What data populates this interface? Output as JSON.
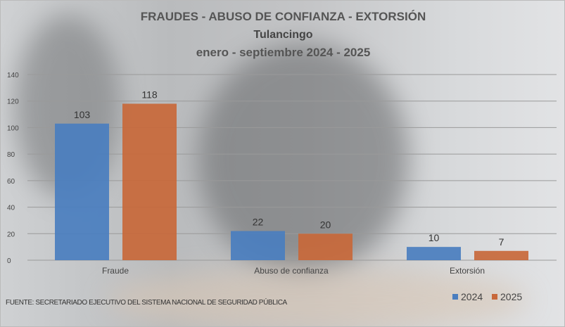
{
  "chart_data": {
    "type": "bar",
    "title": "FRAUDES - ABUSO DE CONFIANZA - EXTORSIÓN",
    "subtitle": "Tulancingo",
    "period": "enero - septiembre 2024 - 2025",
    "categories": [
      "Fraude",
      "Abuso de confianza",
      "Extorsión"
    ],
    "series": [
      {
        "name": "2024",
        "color": "#4a7ebf",
        "values": [
          103,
          22,
          10
        ]
      },
      {
        "name": "2025",
        "color": "#c8683a",
        "values": [
          118,
          20,
          7
        ]
      }
    ],
    "yticks": [
      0,
      20,
      40,
      60,
      80,
      100,
      120,
      140
    ],
    "ylim": [
      0,
      140
    ],
    "grid": true,
    "legend": "bottom-right"
  },
  "source": "FUENTE: SECRETARIADO EJECUTIVO DEL SISTEMA NACIONAL DE SEGURIDAD PÚBLICA"
}
